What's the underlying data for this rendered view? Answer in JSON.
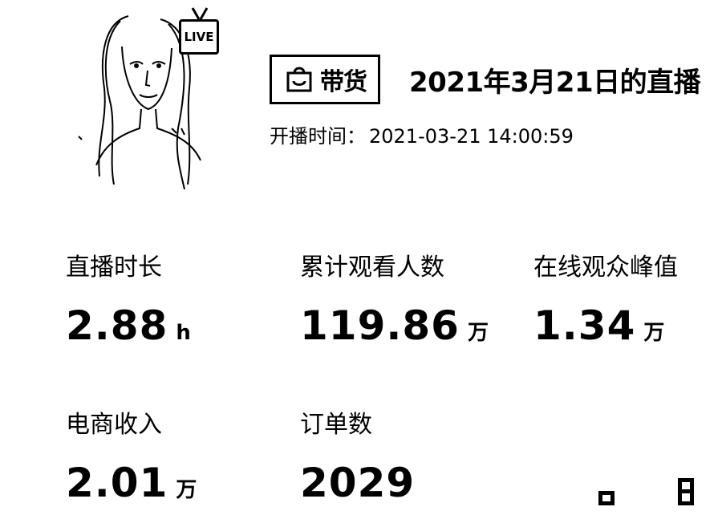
{
  "stream": {
    "live_badge": "LIVE",
    "tag_label": "带货",
    "title": "2021年3月21日的直播",
    "start_time_label": "开播时间：",
    "start_time_value": "2021-03-21 14:00:59"
  },
  "stats": [
    {
      "label": "直播时长",
      "value": "2.88",
      "unit": "h"
    },
    {
      "label": "累计观看人数",
      "value": "119.86",
      "unit": "万"
    },
    {
      "label": "在线观众峰值",
      "value": "1.34",
      "unit": "万"
    },
    {
      "label": "电商收入",
      "value": "2.01",
      "unit": "万"
    },
    {
      "label": "订单数",
      "value": "2029",
      "unit": ""
    }
  ],
  "icons": {
    "cover": "streamer-cover-image",
    "live": "live-tv-icon",
    "tag": "shopping-bag-icon"
  }
}
